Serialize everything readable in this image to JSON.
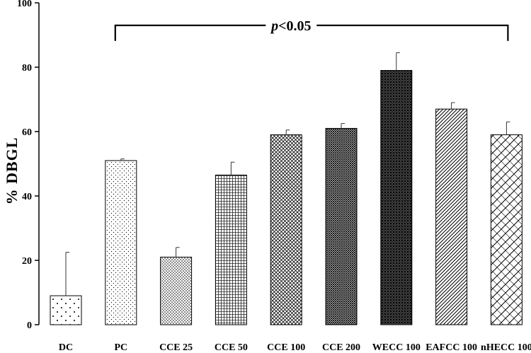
{
  "chart_data": {
    "type": "bar",
    "title": "",
    "xlabel": "",
    "ylabel": "% DBGL",
    "ylim": [
      0,
      100
    ],
    "yticks": [
      0,
      20,
      40,
      60,
      80,
      100
    ],
    "grid": false,
    "categories": [
      "DC",
      "PC",
      "CCE 25",
      "CCE 50",
      "CCE 100",
      "CCE 200",
      "WECC 100",
      "EAFCC 100",
      "nHECC 100"
    ],
    "values": [
      9,
      51,
      21,
      46.5,
      59,
      61,
      79,
      67,
      59
    ],
    "errors": [
      13.5,
      0.5,
      3,
      4,
      1.5,
      1.5,
      5.5,
      2,
      4
    ],
    "patterns": [
      "sparse-dots",
      "fine-dots",
      "dense-dots",
      "grid-fine",
      "crosshatch",
      "dense-grid",
      "dark-crosshatch",
      "diagonal-lines",
      "diagonal-crosshatch"
    ],
    "annotation": {
      "text_italic": "p",
      "text_rest": "<0.05",
      "from_category": "PC",
      "to_category": "nHECC 100",
      "value": 93
    }
  }
}
